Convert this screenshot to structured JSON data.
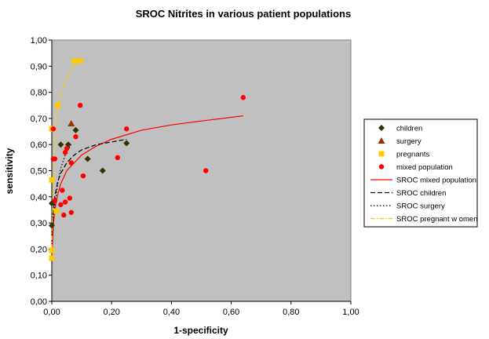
{
  "chart_data": {
    "type": "scatter",
    "title": "SROC Nitrites in various patient populations",
    "xlabel": "1-specificity",
    "ylabel": "sensitivity",
    "xlim": [
      0,
      1
    ],
    "ylim": [
      0,
      1
    ],
    "x_ticks": [
      "0,00",
      "0,20",
      "0,40",
      "0,60",
      "0,80",
      "1,00"
    ],
    "y_ticks": [
      "0,00",
      "0,10",
      "0,20",
      "0,30",
      "0,40",
      "0,50",
      "0,60",
      "0,70",
      "0,80",
      "0,90",
      "1,00"
    ],
    "plot_background": "#c0c0c0",
    "grid": false,
    "legend_position": "right",
    "series": [
      {
        "name": "children",
        "kind": "points",
        "marker": "diamond",
        "color": "#333300",
        "points": [
          [
            0.0,
            0.375
          ],
          [
            0.0,
            0.29
          ],
          [
            0.03,
            0.6
          ],
          [
            0.055,
            0.6
          ],
          [
            0.08,
            0.655
          ],
          [
            0.12,
            0.545
          ],
          [
            0.17,
            0.5
          ],
          [
            0.25,
            0.605
          ]
        ]
      },
      {
        "name": "surgery",
        "kind": "points",
        "marker": "triangle",
        "color": "#993300",
        "points": [
          [
            0.065,
            0.68
          ]
        ]
      },
      {
        "name": "pregnants",
        "kind": "points",
        "marker": "square",
        "color": "#ffcc00",
        "points": [
          [
            0.0,
            0.165
          ],
          [
            0.0,
            0.195
          ],
          [
            0.0,
            0.465
          ],
          [
            0.0,
            0.66
          ],
          [
            0.02,
            0.75
          ],
          [
            0.075,
            0.92
          ],
          [
            0.095,
            0.92
          ],
          [
            0.015,
            0.345
          ]
        ]
      },
      {
        "name": "mixed population",
        "kind": "points",
        "marker": "circle",
        "color": "#ff0000",
        "points": [
          [
            0.005,
            0.545
          ],
          [
            0.01,
            0.545
          ],
          [
            0.01,
            0.385
          ],
          [
            0.005,
            0.66
          ],
          [
            0.03,
            0.37
          ],
          [
            0.035,
            0.425
          ],
          [
            0.04,
            0.33
          ],
          [
            0.045,
            0.38
          ],
          [
            0.045,
            0.57
          ],
          [
            0.05,
            0.585
          ],
          [
            0.06,
            0.395
          ],
          [
            0.065,
            0.34
          ],
          [
            0.065,
            0.53
          ],
          [
            0.08,
            0.63
          ],
          [
            0.095,
            0.75
          ],
          [
            0.105,
            0.48
          ],
          [
            0.22,
            0.55
          ],
          [
            0.25,
            0.66
          ],
          [
            0.515,
            0.5
          ],
          [
            0.64,
            0.78
          ]
        ]
      },
      {
        "name": "SROC mixed population",
        "kind": "line",
        "dash": "solid",
        "color": "#ff0000",
        "points": [
          [
            0.0,
            0.16
          ],
          [
            0.005,
            0.29
          ],
          [
            0.01,
            0.35
          ],
          [
            0.02,
            0.41
          ],
          [
            0.03,
            0.45
          ],
          [
            0.05,
            0.5
          ],
          [
            0.075,
            0.53
          ],
          [
            0.1,
            0.56
          ],
          [
            0.15,
            0.595
          ],
          [
            0.2,
            0.62
          ],
          [
            0.3,
            0.655
          ],
          [
            0.4,
            0.675
          ],
          [
            0.5,
            0.69
          ],
          [
            0.64,
            0.71
          ]
        ]
      },
      {
        "name": "SROC children",
        "kind": "line",
        "dash": "dashed",
        "color": "#000000",
        "points": [
          [
            0.0,
            0.25
          ],
          [
            0.005,
            0.34
          ],
          [
            0.01,
            0.4
          ],
          [
            0.02,
            0.46
          ],
          [
            0.03,
            0.49
          ],
          [
            0.05,
            0.53
          ],
          [
            0.075,
            0.56
          ],
          [
            0.1,
            0.58
          ],
          [
            0.15,
            0.6
          ],
          [
            0.2,
            0.61
          ],
          [
            0.25,
            0.62
          ]
        ]
      },
      {
        "name": "SROC surgery",
        "kind": "line",
        "dash": "dotted",
        "color": "#000000",
        "points": [
          [
            0.0,
            0.2
          ],
          [
            0.005,
            0.32
          ],
          [
            0.01,
            0.37
          ],
          [
            0.02,
            0.45
          ],
          [
            0.03,
            0.51
          ],
          [
            0.045,
            0.56
          ],
          [
            0.065,
            0.6
          ]
        ]
      },
      {
        "name": "SROC pregnant w omen",
        "kind": "line",
        "dash": "dashdot",
        "color": "#ffcc00",
        "points": [
          [
            0.0,
            0.2
          ],
          [
            0.003,
            0.4
          ],
          [
            0.007,
            0.55
          ],
          [
            0.012,
            0.66
          ],
          [
            0.02,
            0.75
          ],
          [
            0.04,
            0.82
          ],
          [
            0.06,
            0.88
          ],
          [
            0.085,
            0.92
          ]
        ]
      }
    ]
  }
}
